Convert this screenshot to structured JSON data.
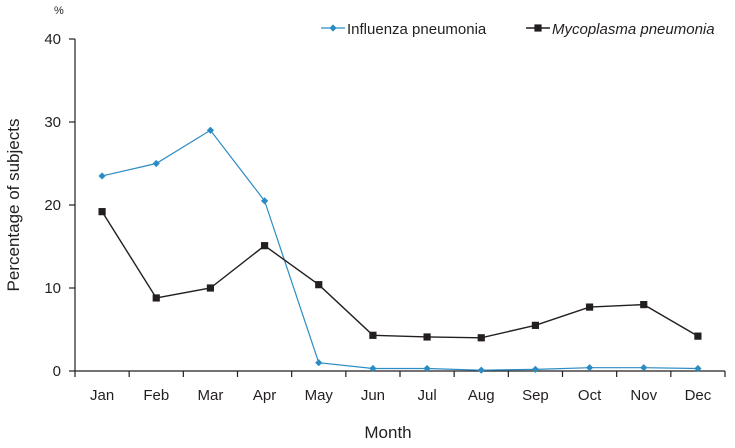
{
  "chart_data": {
    "type": "line",
    "title": "",
    "xlabel": "Month",
    "ylabel": "Percentage of subjects",
    "y_unit": "%",
    "categories": [
      "Jan",
      "Feb",
      "Mar",
      "Apr",
      "May",
      "Jun",
      "Jul",
      "Aug",
      "Sep",
      "Oct",
      "Nov",
      "Dec"
    ],
    "ylim": [
      0,
      40
    ],
    "yticks": [
      "0",
      "10",
      "20",
      "30",
      "40"
    ],
    "grid": false,
    "legend_position": "top-right",
    "series": [
      {
        "name": "Influenza pneumonia",
        "marker": "diamond",
        "color": "#2b8cc4",
        "values": [
          23.5,
          25,
          29,
          20.5,
          1,
          0.3,
          0.3,
          0.1,
          0.2,
          0.4,
          0.4,
          0.3
        ]
      },
      {
        "name": "Mycoplasma pneumonia",
        "marker": "square",
        "color": "#231f20",
        "values": [
          19.2,
          8.8,
          10,
          15.1,
          10.4,
          4.3,
          4.1,
          4,
          5.5,
          7.7,
          8,
          4.2
        ]
      }
    ]
  }
}
